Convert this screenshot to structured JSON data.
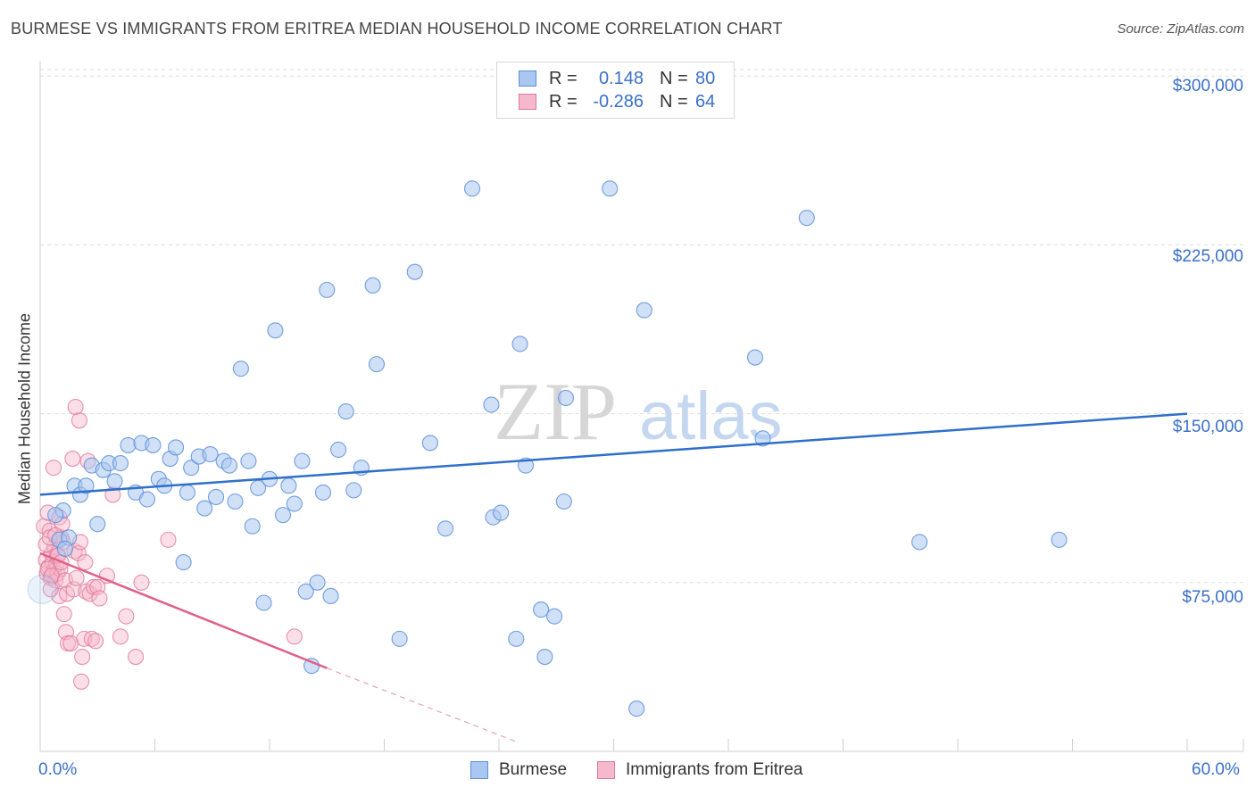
{
  "title": "BURMESE VS IMMIGRANTS FROM ERITREA MEDIAN HOUSEHOLD INCOME CORRELATION CHART",
  "source": "Source: ZipAtlas.com",
  "watermark_zip": "ZIP",
  "watermark_atlas": "atlas",
  "legend": {
    "r_label": "R =",
    "n_label": "N =",
    "rows": [
      {
        "r": "0.148",
        "n": "80"
      },
      {
        "r": "-0.286",
        "n": "64"
      }
    ]
  },
  "colors": {
    "blue_fill": "#a9c7f0",
    "blue_stroke": "#5b8fd8",
    "blue_line": "#2f6fcc",
    "pink_fill": "#f6b8cc",
    "pink_stroke": "#e07898",
    "pink_line": "#e0608c",
    "tick_text": "#3a70c8"
  },
  "chart_data": {
    "type": "scatter",
    "title": "BURMESE VS IMMIGRANTS FROM ERITREA MEDIAN HOUSEHOLD INCOME CORRELATION CHART",
    "xlabel": "",
    "ylabel": "Median Household Income",
    "xlim": [
      0,
      60
    ],
    "ylim": [
      0,
      310000
    ],
    "x_tick_labels": [
      "0.0%",
      "60.0%"
    ],
    "y_ticks": [
      75000,
      150000,
      225000,
      300000
    ],
    "y_tick_labels": [
      "$75,000",
      "$150,000",
      "$225,000",
      "$300,000"
    ],
    "grid": true,
    "series": [
      {
        "name": "Burmese",
        "r": 0.148,
        "n": 80,
        "trend": {
          "x": [
            0,
            60
          ],
          "y": [
            114000,
            150000
          ],
          "style": "solid"
        },
        "points": [
          [
            1.0,
            94000
          ],
          [
            1.2,
            107000
          ],
          [
            1.5,
            95000
          ],
          [
            1.8,
            118000
          ],
          [
            2.1,
            114000
          ],
          [
            2.4,
            118000
          ],
          [
            2.7,
            127000
          ],
          [
            3.0,
            101000
          ],
          [
            3.3,
            125000
          ],
          [
            3.6,
            128000
          ],
          [
            3.9,
            120000
          ],
          [
            4.2,
            128000
          ],
          [
            4.6,
            136000
          ],
          [
            5.0,
            115000
          ],
          [
            5.3,
            137000
          ],
          [
            5.6,
            112000
          ],
          [
            5.9,
            136000
          ],
          [
            6.2,
            121000
          ],
          [
            6.5,
            118000
          ],
          [
            6.8,
            130000
          ],
          [
            7.1,
            135000
          ],
          [
            7.5,
            84000
          ],
          [
            7.7,
            115000
          ],
          [
            7.9,
            126000
          ],
          [
            8.3,
            131000
          ],
          [
            8.6,
            108000
          ],
          [
            8.9,
            132000
          ],
          [
            9.2,
            113000
          ],
          [
            9.6,
            129000
          ],
          [
            9.9,
            127000
          ],
          [
            10.2,
            111000
          ],
          [
            10.5,
            170000
          ],
          [
            10.9,
            129000
          ],
          [
            11.1,
            100000
          ],
          [
            11.4,
            117000
          ],
          [
            11.7,
            66000
          ],
          [
            12.0,
            121000
          ],
          [
            12.3,
            187000
          ],
          [
            12.7,
            105000
          ],
          [
            13.0,
            118000
          ],
          [
            13.3,
            110000
          ],
          [
            13.7,
            129000
          ],
          [
            13.9,
            71000
          ],
          [
            14.2,
            38000
          ],
          [
            14.5,
            75000
          ],
          [
            14.8,
            115000
          ],
          [
            15.0,
            205000
          ],
          [
            15.2,
            69000
          ],
          [
            15.6,
            134000
          ],
          [
            16.0,
            151000
          ],
          [
            16.4,
            116000
          ],
          [
            16.8,
            126000
          ],
          [
            17.4,
            207000
          ],
          [
            17.6,
            172000
          ],
          [
            18.8,
            50000
          ],
          [
            19.6,
            213000
          ],
          [
            20.4,
            137000
          ],
          [
            21.2,
            99000
          ],
          [
            22.6,
            250000
          ],
          [
            23.6,
            154000
          ],
          [
            23.7,
            104000
          ],
          [
            24.1,
            106000
          ],
          [
            24.9,
            50000
          ],
          [
            25.1,
            181000
          ],
          [
            25.4,
            127000
          ],
          [
            26.2,
            63000
          ],
          [
            26.4,
            42000
          ],
          [
            26.9,
            60000
          ],
          [
            27.4,
            111000
          ],
          [
            27.5,
            157000
          ],
          [
            29.8,
            250000
          ],
          [
            31.2,
            19000
          ],
          [
            31.6,
            196000
          ],
          [
            37.4,
            175000
          ],
          [
            37.8,
            139000
          ],
          [
            40.1,
            237000
          ],
          [
            46.0,
            93000
          ],
          [
            53.3,
            94000
          ],
          [
            0.8,
            105000
          ],
          [
            1.3,
            90000
          ]
        ]
      },
      {
        "name": "Immigrants from Eritrea",
        "r": -0.286,
        "n": 64,
        "trend": {
          "x": [
            0,
            15
          ],
          "y": [
            88000,
            37000
          ],
          "style": "solid",
          "dashed_to": {
            "x": 25,
            "y": 4000
          }
        },
        "points": [
          [
            0.2,
            100000
          ],
          [
            0.3,
            85000
          ],
          [
            0.35,
            79000
          ],
          [
            0.4,
            106000
          ],
          [
            0.45,
            82000
          ],
          [
            0.5,
            98000
          ],
          [
            0.55,
            77000
          ],
          [
            0.6,
            88000
          ],
          [
            0.65,
            84000
          ],
          [
            0.7,
            80000
          ],
          [
            0.75,
            91000
          ],
          [
            0.8,
            76000
          ],
          [
            0.85,
            83000
          ],
          [
            0.9,
            79000
          ],
          [
            0.95,
            87000
          ],
          [
            1.0,
            104000
          ],
          [
            1.05,
            81000
          ],
          [
            1.1,
            95000
          ],
          [
            1.15,
            101000
          ],
          [
            1.2,
            93000
          ],
          [
            0.4,
            81000
          ],
          [
            0.6,
            78000
          ],
          [
            0.9,
            87000
          ],
          [
            1.0,
            69000
          ],
          [
            1.1,
            84000
          ],
          [
            0.7,
            126000
          ],
          [
            0.3,
            92000
          ],
          [
            0.5,
            95000
          ],
          [
            1.3,
            76000
          ],
          [
            1.35,
            53000
          ],
          [
            1.4,
            70000
          ],
          [
            1.45,
            48000
          ],
          [
            1.6,
            48000
          ],
          [
            1.7,
            130000
          ],
          [
            1.75,
            72000
          ],
          [
            1.8,
            89000
          ],
          [
            1.85,
            153000
          ],
          [
            1.9,
            77000
          ],
          [
            2.0,
            88000
          ],
          [
            2.05,
            147000
          ],
          [
            2.1,
            93000
          ],
          [
            2.15,
            31000
          ],
          [
            2.2,
            42000
          ],
          [
            2.3,
            50000
          ],
          [
            2.4,
            71000
          ],
          [
            2.5,
            129000
          ],
          [
            2.6,
            70000
          ],
          [
            2.7,
            50000
          ],
          [
            2.8,
            73000
          ],
          [
            2.9,
            49000
          ],
          [
            3.0,
            73000
          ],
          [
            3.1,
            68000
          ],
          [
            3.5,
            78000
          ],
          [
            3.8,
            114000
          ],
          [
            4.2,
            51000
          ],
          [
            4.5,
            60000
          ],
          [
            5.0,
            42000
          ],
          [
            5.3,
            75000
          ],
          [
            6.7,
            94000
          ],
          [
            13.3,
            51000
          ],
          [
            0.55,
            72000
          ],
          [
            1.25,
            61000
          ],
          [
            0.8,
            96000
          ],
          [
            2.35,
            84000
          ]
        ]
      }
    ]
  },
  "bottom_legend": [
    {
      "label": "Burmese"
    },
    {
      "label": "Immigrants from Eritrea"
    }
  ]
}
